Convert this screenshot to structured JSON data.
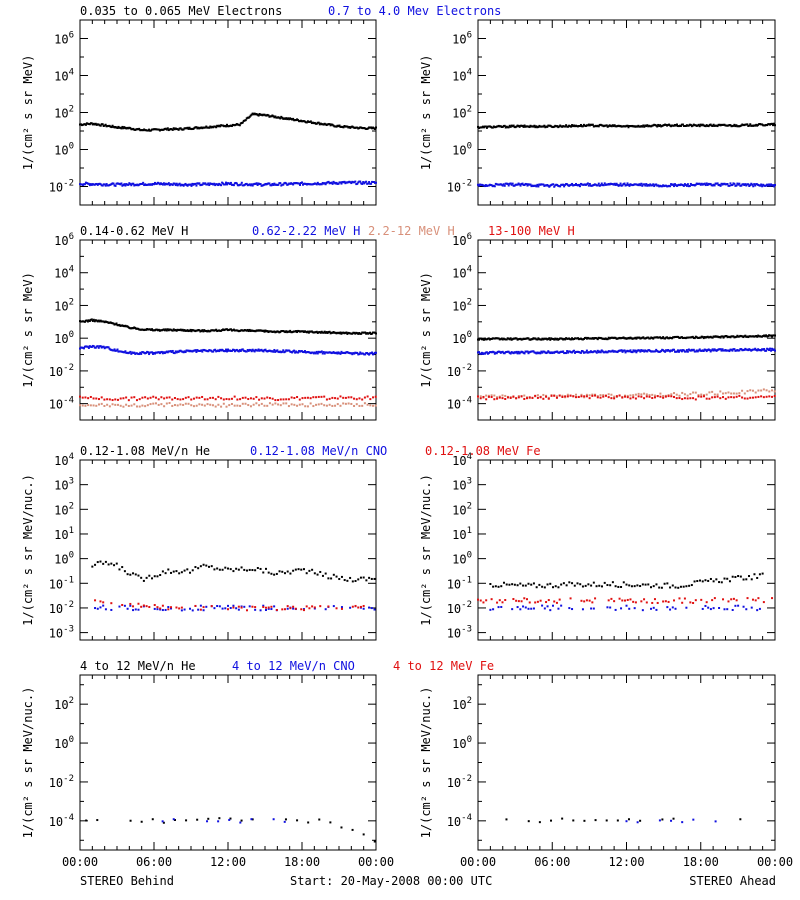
{
  "colors": {
    "black": "#000000",
    "blue": "#1010e0",
    "salmon": "#d8907a",
    "red": "#e01010"
  },
  "rows": [
    {
      "ylabel": "1/(cm² s sr MeV)",
      "legend": [
        {
          "text": "0.035 to 0.065 MeV Electrons",
          "color": "black"
        },
        {
          "text": "0.7 to 4.0 Mev Electrons",
          "color": "blue"
        }
      ],
      "yticks": [
        {
          "base": "10",
          "exp": "6"
        },
        {
          "base": "10",
          "exp": "4"
        },
        {
          "base": "10",
          "exp": "2"
        },
        {
          "base": "10",
          "exp": "0"
        },
        {
          "base": "10",
          "exp": "-2"
        }
      ]
    },
    {
      "ylabel": "1/(cm² s sr MeV)",
      "legend": [
        {
          "text": "0.14-0.62 MeV H",
          "color": "black"
        },
        {
          "text": "0.62-2.22 MeV H",
          "color": "blue"
        },
        {
          "text": "2.2-12 MeV H",
          "color": "salmon"
        },
        {
          "text": "13-100 MeV H",
          "color": "red"
        }
      ],
      "yticks": [
        {
          "base": "10",
          "exp": "6"
        },
        {
          "base": "10",
          "exp": "4"
        },
        {
          "base": "10",
          "exp": "2"
        },
        {
          "base": "10",
          "exp": "0"
        },
        {
          "base": "10",
          "exp": "-2"
        },
        {
          "base": "10",
          "exp": "-4"
        }
      ]
    },
    {
      "ylabel": "1/(cm² s sr MeV/nuc.)",
      "legend": [
        {
          "text": "0.12-1.08 MeV/n He",
          "color": "black"
        },
        {
          "text": "0.12-1.08 MeV/n CNO",
          "color": "blue"
        },
        {
          "text": "0.12-1.08 MeV Fe",
          "color": "red"
        }
      ],
      "yticks": [
        {
          "base": "10",
          "exp": "4"
        },
        {
          "base": "10",
          "exp": "3"
        },
        {
          "base": "10",
          "exp": "2"
        },
        {
          "base": "10",
          "exp": "1"
        },
        {
          "base": "10",
          "exp": "0"
        },
        {
          "base": "10",
          "exp": "-1"
        },
        {
          "base": "10",
          "exp": "-2"
        },
        {
          "base": "10",
          "exp": "-3"
        }
      ]
    },
    {
      "ylabel": "1/(cm² s sr MeV/nuc.)",
      "legend": [
        {
          "text": "4 to 12 MeV/n He",
          "color": "black"
        },
        {
          "text": "4 to 12 MeV/n CNO",
          "color": "blue"
        },
        {
          "text": "4 to 12 MeV Fe",
          "color": "red"
        }
      ],
      "yticks": [
        {
          "base": "10",
          "exp": "2"
        },
        {
          "base": "10",
          "exp": "0"
        },
        {
          "base": "10",
          "exp": "-2"
        },
        {
          "base": "10",
          "exp": "-4"
        }
      ]
    }
  ],
  "xticks": [
    "00:00",
    "06:00",
    "12:00",
    "18:00",
    "00:00"
  ],
  "footer": {
    "left": "STEREO Behind",
    "center": "Start: 20-May-2008 00:00 UTC",
    "right": "STEREO Ahead"
  },
  "chart_data": [
    {
      "type": "scatter",
      "spacecraft": "STEREO Behind",
      "ylim_log10": [
        -3,
        7
      ],
      "x_unit": "hours",
      "series": [
        {
          "name": "0.035 to 0.065 MeV Electrons",
          "color": "black",
          "points": [
            [
              0,
              1.35
            ],
            [
              1,
              1.4
            ],
            [
              2,
              1.3
            ],
            [
              3,
              1.2
            ],
            [
              4,
              1.15
            ],
            [
              5,
              1.05
            ],
            [
              6,
              1.05
            ],
            [
              7,
              1.1
            ],
            [
              8,
              1.1
            ],
            [
              9,
              1.15
            ],
            [
              10,
              1.2
            ],
            [
              11,
              1.25
            ],
            [
              12,
              1.3
            ],
            [
              13,
              1.35
            ],
            [
              14,
              1.9
            ],
            [
              15,
              1.85
            ],
            [
              16,
              1.75
            ],
            [
              17,
              1.65
            ],
            [
              18,
              1.55
            ],
            [
              19,
              1.45
            ],
            [
              20,
              1.35
            ],
            [
              21,
              1.25
            ],
            [
              22,
              1.2
            ],
            [
              23,
              1.15
            ],
            [
              24,
              1.15
            ]
          ]
        },
        {
          "name": "0.7 to 4.0 Mev Electrons",
          "color": "blue",
          "points": [
            [
              0,
              -1.85
            ],
            [
              3,
              -1.9
            ],
            [
              6,
              -1.85
            ],
            [
              9,
              -1.9
            ],
            [
              12,
              -1.85
            ],
            [
              15,
              -1.9
            ],
            [
              18,
              -1.85
            ],
            [
              21,
              -1.8
            ],
            [
              24,
              -1.8
            ]
          ]
        }
      ]
    },
    {
      "type": "scatter",
      "spacecraft": "STEREO Ahead",
      "ylim_log10": [
        -3,
        7
      ],
      "x_unit": "hours",
      "series": [
        {
          "name": "0.035 to 0.065 MeV Electrons",
          "color": "black",
          "points": [
            [
              0,
              1.2
            ],
            [
              3,
              1.25
            ],
            [
              6,
              1.25
            ],
            [
              9,
              1.3
            ],
            [
              12,
              1.25
            ],
            [
              15,
              1.3
            ],
            [
              18,
              1.3
            ],
            [
              21,
              1.3
            ],
            [
              24,
              1.35
            ]
          ]
        },
        {
          "name": "0.7 to 4.0 Mev Electrons",
          "color": "blue",
          "points": [
            [
              0,
              -1.95
            ],
            [
              3,
              -1.9
            ],
            [
              6,
              -1.95
            ],
            [
              9,
              -1.9
            ],
            [
              12,
              -1.9
            ],
            [
              15,
              -1.95
            ],
            [
              18,
              -1.9
            ],
            [
              21,
              -1.9
            ],
            [
              24,
              -1.95
            ]
          ]
        }
      ]
    },
    {
      "type": "scatter",
      "spacecraft": "STEREO Behind",
      "ylim_log10": [
        -5,
        6
      ],
      "x_unit": "hours",
      "series": [
        {
          "name": "0.14-0.62 MeV H",
          "color": "black",
          "points": [
            [
              0,
              1.0
            ],
            [
              1,
              1.1
            ],
            [
              2,
              1.0
            ],
            [
              3,
              0.85
            ],
            [
              4,
              0.65
            ],
            [
              5,
              0.55
            ],
            [
              6,
              0.5
            ],
            [
              8,
              0.5
            ],
            [
              10,
              0.45
            ],
            [
              12,
              0.5
            ],
            [
              14,
              0.45
            ],
            [
              16,
              0.4
            ],
            [
              18,
              0.4
            ],
            [
              20,
              0.35
            ],
            [
              22,
              0.3
            ],
            [
              24,
              0.3
            ]
          ]
        },
        {
          "name": "0.62-2.22 MeV H",
          "color": "blue",
          "points": [
            [
              0,
              -0.6
            ],
            [
              1,
              -0.5
            ],
            [
              2,
              -0.55
            ],
            [
              3,
              -0.75
            ],
            [
              4,
              -0.9
            ],
            [
              6,
              -0.9
            ],
            [
              9,
              -0.8
            ],
            [
              12,
              -0.75
            ],
            [
              15,
              -0.75
            ],
            [
              18,
              -0.85
            ],
            [
              21,
              -0.9
            ],
            [
              24,
              -0.95
            ]
          ]
        },
        {
          "name": "2.2-12 MeV H",
          "color": "salmon",
          "points": [
            [
              0,
              -4.05
            ],
            [
              4,
              -4.1
            ],
            [
              8,
              -4.05
            ],
            [
              12,
              -4.1
            ],
            [
              16,
              -4.05
            ],
            [
              20,
              -4.1
            ],
            [
              24,
              -4.05
            ]
          ]
        },
        {
          "name": "13-100 MeV H",
          "color": "red",
          "points": [
            [
              0,
              -3.65
            ],
            [
              4,
              -3.7
            ],
            [
              8,
              -3.65
            ],
            [
              12,
              -3.65
            ],
            [
              16,
              -3.7
            ],
            [
              20,
              -3.65
            ],
            [
              24,
              -3.65
            ]
          ]
        }
      ]
    },
    {
      "type": "scatter",
      "spacecraft": "STEREO Ahead",
      "ylim_log10": [
        -5,
        6
      ],
      "x_unit": "hours",
      "series": [
        {
          "name": "0.14-0.62 MeV H",
          "color": "black",
          "points": [
            [
              0,
              -0.05
            ],
            [
              6,
              -0.05
            ],
            [
              12,
              0.0
            ],
            [
              18,
              0.05
            ],
            [
              24,
              0.15
            ]
          ]
        },
        {
          "name": "0.62-2.22 MeV H",
          "color": "blue",
          "points": [
            [
              0,
              -0.9
            ],
            [
              6,
              -0.85
            ],
            [
              12,
              -0.8
            ],
            [
              18,
              -0.75
            ],
            [
              24,
              -0.7
            ]
          ]
        },
        {
          "name": "2.2-12 MeV H",
          "color": "salmon",
          "points": [
            [
              0,
              -3.6
            ],
            [
              6,
              -3.55
            ],
            [
              12,
              -3.5
            ],
            [
              18,
              -3.4
            ],
            [
              24,
              -3.2
            ]
          ]
        },
        {
          "name": "13-100 MeV H",
          "color": "red",
          "points": [
            [
              0,
              -3.65
            ],
            [
              6,
              -3.6
            ],
            [
              12,
              -3.6
            ],
            [
              18,
              -3.65
            ],
            [
              24,
              -3.6
            ]
          ]
        }
      ]
    },
    {
      "type": "scatter",
      "spacecraft": "STEREO Behind",
      "ylim_log10": [
        -3.3,
        4
      ],
      "x_unit": "hours",
      "series": [
        {
          "name": "0.12-1.08 MeV/n He",
          "color": "black",
          "points": [
            [
              1,
              -0.3
            ],
            [
              2,
              -0.15
            ],
            [
              3,
              -0.3
            ],
            [
              5,
              -0.85
            ],
            [
              7,
              -0.5
            ],
            [
              9,
              -0.5
            ],
            [
              10,
              -0.3
            ],
            [
              12,
              -0.45
            ],
            [
              14,
              -0.4
            ],
            [
              16,
              -0.6
            ],
            [
              18,
              -0.45
            ],
            [
              20,
              -0.7
            ],
            [
              22,
              -0.85
            ],
            [
              24,
              -0.8
            ]
          ]
        },
        {
          "name": "0.12-1.08 MeV/n CNO",
          "color": "blue",
          "points": [
            [
              1,
              -2.0
            ],
            [
              4,
              -2.0
            ],
            [
              8,
              -2.0
            ],
            [
              12,
              -2.0
            ],
            [
              16,
              -2.0
            ],
            [
              20,
              -2.0
            ],
            [
              24,
              -2.0
            ]
          ]
        },
        {
          "name": "0.12-1.08 MeV Fe",
          "color": "red",
          "points": [
            [
              1,
              -1.7
            ],
            [
              7,
              -2.0
            ],
            [
              12,
              -2.0
            ],
            [
              19,
              -2.0
            ],
            [
              23,
              -2.0
            ]
          ]
        }
      ]
    },
    {
      "type": "scatter",
      "spacecraft": "STEREO Ahead",
      "ylim_log10": [
        -3.3,
        4
      ],
      "x_unit": "hours",
      "series": [
        {
          "name": "0.12-1.08 MeV/n He",
          "color": "black",
          "points": [
            [
              1,
              -1.05
            ],
            [
              4,
              -1.1
            ],
            [
              8,
              -1.05
            ],
            [
              12,
              -1.05
            ],
            [
              16,
              -1.1
            ],
            [
              20,
              -0.85
            ],
            [
              23,
              -0.7
            ]
          ]
        },
        {
          "name": "0.12-1.08 MeV/n CNO",
          "color": "blue",
          "points": [
            [
              1,
              -2.0
            ],
            [
              6,
              -2.0
            ],
            [
              12,
              -2.0
            ],
            [
              18,
              -2.0
            ],
            [
              24,
              -2.0
            ]
          ]
        },
        {
          "name": "0.12-1.08 MeV Fe",
          "color": "red",
          "points": [
            [
              0,
              -1.7
            ],
            [
              24,
              -1.7
            ]
          ]
        }
      ]
    },
    {
      "type": "scatter",
      "spacecraft": "STEREO Behind",
      "ylim_log10": [
        -5.5,
        3.5
      ],
      "x_unit": "hours",
      "series": [
        {
          "name": "4 to 12 MeV/n He",
          "color": "black",
          "points": [
            [
              0.5,
              -4.0
            ],
            [
              1.5,
              -3.9
            ],
            [
              3,
              -4.0
            ],
            [
              7,
              -4.0
            ],
            [
              10,
              -3.9
            ],
            [
              13,
              -4.0
            ],
            [
              16,
              -4.0
            ],
            [
              20,
              -4.0
            ],
            [
              24,
              -5.0
            ]
          ]
        },
        {
          "name": "4 to 12 MeV/n CNO",
          "color": "blue",
          "points": [
            [
              4,
              -4.0
            ],
            [
              9,
              -4.0
            ],
            [
              17,
              -4.0
            ]
          ]
        },
        {
          "name": "4 to 12 MeV Fe",
          "color": "red",
          "points": []
        }
      ]
    },
    {
      "type": "scatter",
      "spacecraft": "STEREO Ahead",
      "ylim_log10": [
        -5.5,
        3.5
      ],
      "x_unit": "hours",
      "series": [
        {
          "name": "4 to 12 MeV/n He",
          "color": "black",
          "points": [
            [
              0.5,
              -4.0
            ],
            [
              2.5,
              -3.9
            ],
            [
              5,
              -4.0
            ],
            [
              9,
              -3.9
            ],
            [
              14,
              -4.0
            ],
            [
              19,
              -3.9
            ],
            [
              22,
              -4.0
            ]
          ]
        },
        {
          "name": "4 to 12 MeV/n CNO",
          "color": "blue",
          "points": [
            [
              12,
              -4.0
            ],
            [
              20,
              -4.0
            ]
          ]
        },
        {
          "name": "4 to 12 MeV Fe",
          "color": "red",
          "points": []
        }
      ]
    }
  ]
}
